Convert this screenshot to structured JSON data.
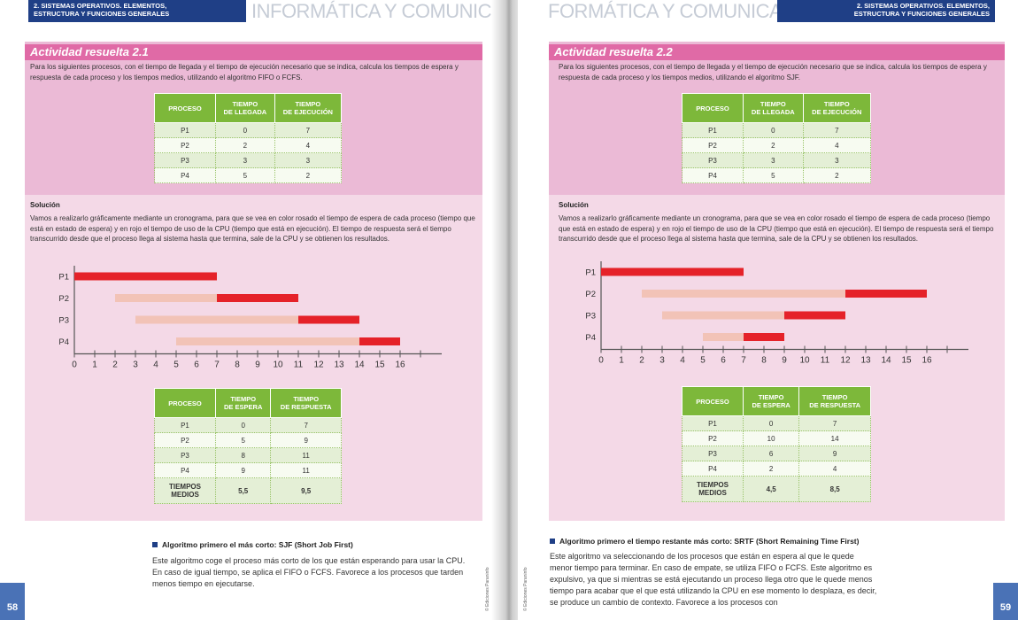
{
  "header": {
    "section": "2. SISTEMAS OPERATIVOS. ELEMENTOS,\nESTRUCTURA Y FUNCIONES GENERALES",
    "title_left": "INFORMÁTICA Y COMUNICACIONE",
    "title_right": "FORMÁTICA Y COMUNICACIONES"
  },
  "left": {
    "page_number": "58",
    "activity_title": "Actividad resuelta 2.1",
    "intro": "Para los siguientes procesos, con el tiempo de llegada y el tiempo de ejecución necesario que se indica, calcula los tiempos de espera y respuesta de cada proceso y los tiempos medios, utilizando el algoritmo FIFO o FCFS.",
    "table1": {
      "headers": [
        "PROCESO",
        "TIEMPO\nDE LLEGADA",
        "TIEMPO\nDE EJECUCIÓN"
      ],
      "rows": [
        [
          "P1",
          "0",
          "7"
        ],
        [
          "P2",
          "2",
          "4"
        ],
        [
          "P3",
          "3",
          "3"
        ],
        [
          "P4",
          "5",
          "2"
        ]
      ]
    },
    "solution_label": "Solución",
    "solution_text": "Vamos a realizarlo gráficamente mediante un cronograma, para que se vea en color rosado el tiempo de espera de cada proceso (tiempo que está en estado de espera) y en rojo el tiempo de uso de la CPU (tiempo que está en ejecución). El tiempo de respuesta será el tiempo transcurrido desde que el proceso llega al sistema hasta que termina, sale de la CPU y se obtienen los resultados.",
    "table2": {
      "headers": [
        "PROCESO",
        "TIEMPO\nDE ESPERA",
        "TIEMPO\nDE RESPUESTA"
      ],
      "rows": [
        [
          "P1",
          "0",
          "7"
        ],
        [
          "P2",
          "5",
          "9"
        ],
        [
          "P3",
          "8",
          "11"
        ],
        [
          "P4",
          "9",
          "11"
        ]
      ],
      "avg_label": "TIEMPOS\nMEDIOS",
      "avg_wait": "5,5",
      "avg_resp": "9,5"
    },
    "bullet_title": "Algoritmo primero el más corto: SJF (Short Job First)",
    "bullet_text": "Este algoritmo coge el proceso más corto de los que están esperando para usar la CPU. En caso de igual tiempo, se aplica el FIFO o FCFS. Favorece a los procesos que tarden menos tiempo en ejecutarse.",
    "vertical": "© Ediciones Paraninfo"
  },
  "right": {
    "page_number": "59",
    "activity_title": "Actividad resuelta 2.2",
    "intro": "Para los siguientes procesos, con el tiempo de llegada y el tiempo de ejecución necesario que se indica, calcula los tiempos de espera y respuesta de cada proceso y los tiempos medios, utilizando el algoritmo SJF.",
    "table1": {
      "headers": [
        "PROCESO",
        "TIEMPO\nDE LLEGADA",
        "TIEMPO\nDE EJECUCIÓN"
      ],
      "rows": [
        [
          "P1",
          "0",
          "7"
        ],
        [
          "P2",
          "2",
          "4"
        ],
        [
          "P3",
          "3",
          "3"
        ],
        [
          "P4",
          "5",
          "2"
        ]
      ]
    },
    "solution_label": "Solución",
    "solution_text": "Vamos a realizarlo gráficamente mediante un cronograma, para que se vea en color rosado el tiempo de espera de cada proceso (tiempo que está en estado de espera) y en rojo el tiempo de uso de la CPU (tiempo que está en ejecución). El tiempo de respuesta será el tiempo transcurrido desde que el proceso llega al sistema hasta que termina, sale de la CPU y se obtienen los resultados.",
    "table2": {
      "headers": [
        "PROCESO",
        "TIEMPO\nDE ESPERA",
        "TIEMPO\nDE RESPUESTA"
      ],
      "rows": [
        [
          "P1",
          "0",
          "7"
        ],
        [
          "P2",
          "10",
          "14"
        ],
        [
          "P3",
          "6",
          "9"
        ],
        [
          "P4",
          "2",
          "4"
        ]
      ],
      "avg_label": "TIEMPOS\nMEDIOS",
      "avg_wait": "4,5",
      "avg_resp": "8,5"
    },
    "bullet_title": "Algoritmo primero el tiempo restante más corto: SRTF (Short Remaining Time First)",
    "bullet_text": "Este algoritmo va seleccionando de los procesos que están en espera al que le quede menor tiempo para terminar. En caso de empate, se utiliza FIFO o FCFS. Este algoritmo es expulsivo, ya que si mientras se está ejecutando un proceso llega otro que le quede menos tiempo para acabar que el que está utilizando la CPU en ese momento lo desplaza, es decir, se produce un cambio de contexto. Favorece a los procesos con",
    "vertical": "© Ediciones Paraninfo"
  },
  "chart_data": [
    {
      "type": "gantt",
      "categories": [
        "P1",
        "P2",
        "P3",
        "P4"
      ],
      "xticks": [
        "0",
        "1",
        "2",
        "3",
        "4",
        "5",
        "6",
        "7",
        "8",
        "9",
        "10",
        "11",
        "12",
        "13",
        "14",
        "15",
        "16"
      ],
      "xlim": [
        0,
        17
      ],
      "colors": {
        "wait": "#f2c3b7",
        "run": "#e52229"
      },
      "series": [
        {
          "name": "P1",
          "wait": [],
          "run": [
            [
              0,
              7
            ]
          ]
        },
        {
          "name": "P2",
          "wait": [
            [
              2,
              7
            ]
          ],
          "run": [
            [
              7,
              11
            ]
          ]
        },
        {
          "name": "P3",
          "wait": [
            [
              3,
              11
            ]
          ],
          "run": [
            [
              11,
              14
            ]
          ]
        },
        {
          "name": "P4",
          "wait": [
            [
              5,
              14
            ]
          ],
          "run": [
            [
              14,
              16
            ]
          ]
        }
      ]
    },
    {
      "type": "gantt",
      "categories": [
        "P1",
        "P2",
        "P3",
        "P4"
      ],
      "xticks": [
        "0",
        "1",
        "2",
        "3",
        "4",
        "5",
        "6",
        "7",
        "8",
        "9",
        "10",
        "11",
        "12",
        "13",
        "14",
        "15",
        "16"
      ],
      "xlim": [
        0,
        17
      ],
      "colors": {
        "wait": "#f2c3b7",
        "run": "#e52229"
      },
      "series": [
        {
          "name": "P1",
          "wait": [],
          "run": [
            [
              0,
              7
            ]
          ]
        },
        {
          "name": "P2",
          "wait": [
            [
              2,
              12
            ]
          ],
          "run": [
            [
              12,
              16
            ]
          ]
        },
        {
          "name": "P3",
          "wait": [
            [
              3,
              9
            ]
          ],
          "run": [
            [
              9,
              12
            ]
          ]
        },
        {
          "name": "P4",
          "wait": [
            [
              5,
              7
            ]
          ],
          "run": [
            [
              7,
              9
            ]
          ]
        }
      ]
    }
  ]
}
